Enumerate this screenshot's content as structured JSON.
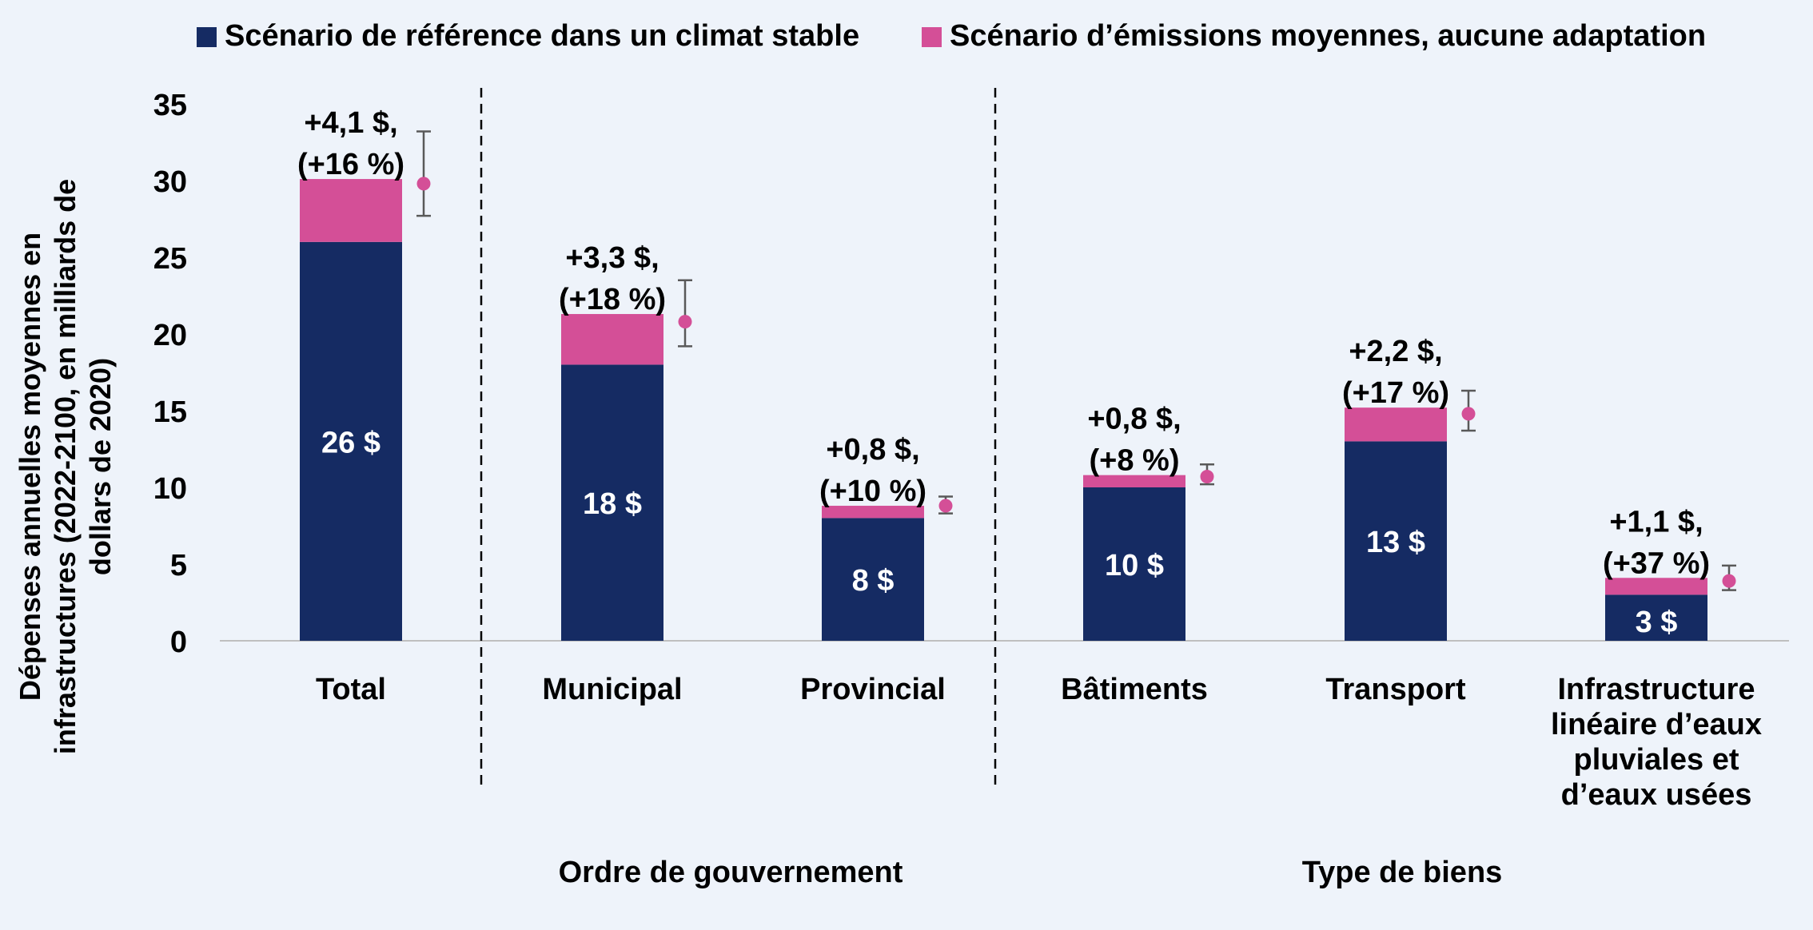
{
  "chart_data": {
    "type": "bar",
    "stacked": true,
    "ylabel": "Dépenses annuelles moyennes en infrastructures (2022-2100, en milliards de dollars de 2020)",
    "ylabel_lines": [
      "Dépenses annuelles moyennes en",
      "infrastructures (2022-2100, en milliards de",
      "dollars de 2020)"
    ],
    "ylim": [
      0,
      35
    ],
    "yticks": [
      "0",
      "5",
      "10",
      "15",
      "20",
      "25",
      "30",
      "35"
    ],
    "grid": false,
    "legend_position": "top",
    "colors": {
      "base": "#152b63",
      "increase": "#d44f97",
      "marker": "#d44f97",
      "errorbar": "#595959"
    },
    "series": [
      {
        "name": "Scénario de référence dans un climat stable",
        "values": [
          26,
          18,
          8,
          10,
          13,
          3
        ]
      },
      {
        "name": "Scénario d’émissions moyennes, aucune adaptation",
        "values": [
          4.1,
          3.3,
          0.8,
          0.8,
          2.2,
          1.1
        ]
      }
    ],
    "categories": [
      [
        "Total"
      ],
      [
        "Municipal"
      ],
      [
        "Provincial"
      ],
      [
        "Bâtiments"
      ],
      [
        "Transport"
      ],
      [
        "Infrastructure",
        "linéaire d’eaux",
        "pluviales et",
        "d’eaux usées"
      ]
    ],
    "base_labels": [
      "26 $",
      "18 $",
      "8 $",
      "10 $",
      "13 $",
      "3 $"
    ],
    "increase_labels": [
      [
        "+4,1 $,",
        "(+16 %)"
      ],
      [
        "+3,3 $,",
        "(+18 %)"
      ],
      [
        "+0,8 $,",
        "(+10 %)"
      ],
      [
        "+0,8 $,",
        "(+8 %)"
      ],
      [
        "+2,2 $,",
        "(+17 %)"
      ],
      [
        "+1,1 $,",
        "(+37 %)"
      ]
    ],
    "markers": [
      {
        "value": 29.8,
        "low": 27.7,
        "high": 33.2
      },
      {
        "value": 20.8,
        "low": 19.2,
        "high": 23.5
      },
      {
        "value": 8.8,
        "low": 8.3,
        "high": 9.4
      },
      {
        "value": 10.7,
        "low": 10.2,
        "high": 11.5
      },
      {
        "value": 14.8,
        "low": 13.7,
        "high": 16.3
      },
      {
        "value": 3.9,
        "low": 3.3,
        "high": 4.9
      }
    ],
    "groups": [
      {
        "label": "Ordre de gouvernement",
        "categories": [
          1,
          2
        ]
      },
      {
        "label": "Type de biens",
        "categories": [
          3,
          4,
          5
        ]
      }
    ]
  }
}
